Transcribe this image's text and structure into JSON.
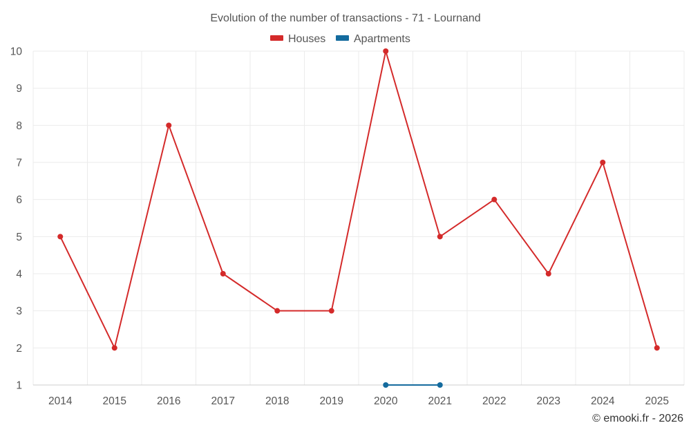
{
  "chart_data": {
    "type": "line",
    "title": "Evolution of the number of transactions - 71 - Lournand",
    "categories": [
      "2014",
      "2015",
      "2016",
      "2017",
      "2018",
      "2019",
      "2020",
      "2021",
      "2022",
      "2023",
      "2024",
      "2025"
    ],
    "series": [
      {
        "name": "Houses",
        "color": "#d42a2a",
        "values": [
          5,
          2,
          8,
          4,
          3,
          3,
          10,
          5,
          6,
          4,
          7,
          2
        ]
      },
      {
        "name": "Apartments",
        "color": "#146b9e",
        "values": [
          null,
          null,
          null,
          null,
          null,
          null,
          1,
          1,
          null,
          null,
          null,
          null
        ]
      }
    ],
    "yticks": [
      "1",
      "2",
      "3",
      "4",
      "5",
      "6",
      "7",
      "8",
      "9",
      "10"
    ],
    "ylim": [
      1,
      10
    ],
    "xlabel": "",
    "ylabel": "",
    "grid": true,
    "legend_position": "top-center"
  },
  "credit": "© emooki.fr - 2026"
}
